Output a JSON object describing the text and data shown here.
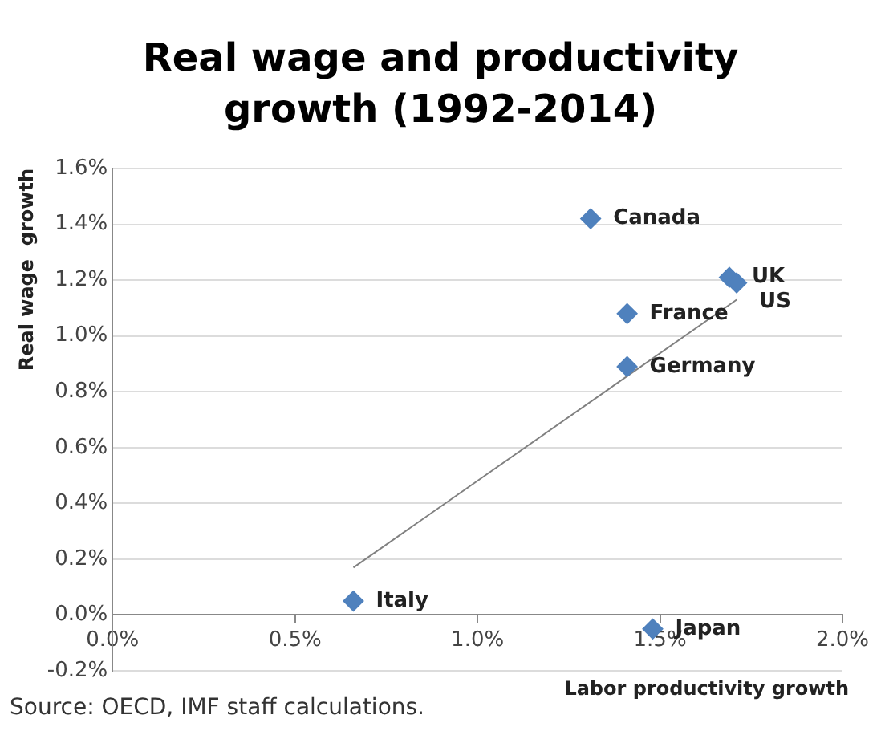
{
  "chart_data": {
    "type": "scatter",
    "title": "Real wage and productivity growth (1992-2014)",
    "xlabel": "Labor productivity growth",
    "ylabel": "Real wage  growth",
    "x": [
      1.31,
      1.69,
      1.71,
      1.41,
      1.41,
      1.48,
      0.66
    ],
    "series": [
      {
        "color": "#4f81bd",
        "values": [
          1.42,
          1.21,
          1.19,
          1.08,
          0.89,
          -0.05,
          0.05
        ],
        "marker": "diamond"
      },
      {
        "type": "line",
        "color": "#808080",
        "x": [
          0.66,
          1.71
        ],
        "values": [
          0.17,
          1.13
        ],
        "marker": "none"
      }
    ],
    "xlim": [
      0,
      2
    ],
    "xticks": [
      {
        "value": 0,
        "label": "0.0%"
      },
      {
        "value": 0.5,
        "label": "0.5%"
      },
      {
        "value": 1,
        "label": "1.0%"
      },
      {
        "value": 1.5,
        "label": "1.5%"
      },
      {
        "value": 2,
        "label": "2.0%"
      }
    ],
    "ylim": [
      -0.2,
      1.6
    ],
    "yticks": [
      {
        "value": -0.2,
        "label": "-0.2%"
      },
      {
        "value": 0,
        "label": "0.0%"
      },
      {
        "value": 0.2,
        "label": "0.2%"
      },
      {
        "value": 0.4,
        "label": "0.4%"
      },
      {
        "value": 0.6,
        "label": "0.6%"
      },
      {
        "value": 0.8,
        "label": "0.8%"
      },
      {
        "value": 1,
        "label": "1.0%"
      },
      {
        "value": 1.2,
        "label": "1.2%"
      },
      {
        "value": 1.4,
        "label": "1.4%"
      },
      {
        "value": 1.6,
        "label": "1.6%"
      }
    ],
    "grid": "y",
    "legend": false,
    "annotations": [
      {
        "text": "Canada",
        "x": 1.31,
        "y": 1.42
      },
      {
        "text": "UK",
        "x": 1.69,
        "y": 1.21
      },
      {
        "text": "US",
        "x": 1.71,
        "y": 1.19
      },
      {
        "text": "France",
        "x": 1.41,
        "y": 1.08
      },
      {
        "text": "Germany",
        "x": 1.41,
        "y": 0.89
      },
      {
        "text": "Japan",
        "x": 1.48,
        "y": -0.05
      },
      {
        "text": "Italy",
        "x": 0.66,
        "y": 0.05
      },
      "Source: OECD, IMF staff calculations."
    ]
  }
}
